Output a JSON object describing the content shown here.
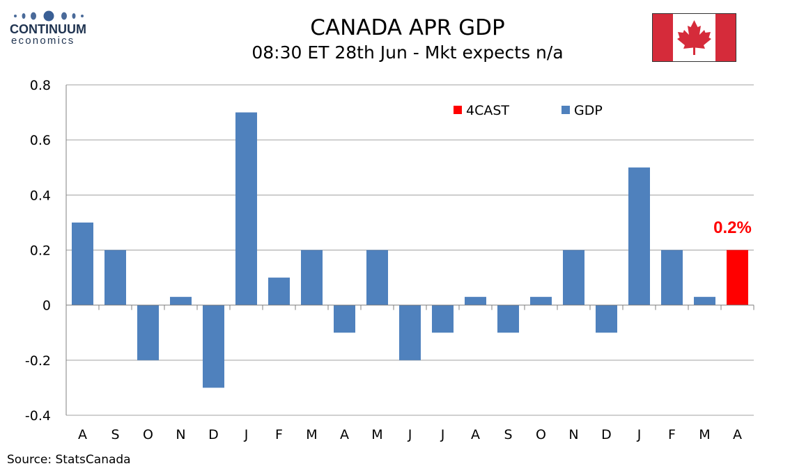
{
  "brand": {
    "name": "CONTINUUM",
    "sub": "economics"
  },
  "header": {
    "title": "CANADA APR GDP",
    "subtitle": "08:30 ET 28th Jun - Mkt expects n/a"
  },
  "flag": {
    "country": "Canada",
    "icon": "maple-leaf-flag-icon",
    "red": "#d52b3a",
    "white": "#ffffff"
  },
  "footer": {
    "source": "Source: StatsCanada"
  },
  "chart_data": {
    "type": "bar",
    "categories": [
      "A",
      "S",
      "O",
      "N",
      "D",
      "J",
      "F",
      "M",
      "A",
      "M",
      "J",
      "J",
      "A",
      "S",
      "O",
      "N",
      "D",
      "J",
      "F",
      "M",
      "A"
    ],
    "series": [
      {
        "name": "GDP",
        "color": "#4f81bd",
        "values": [
          0.3,
          0.2,
          -0.2,
          0.03,
          -0.3,
          0.7,
          0.1,
          0.2,
          -0.1,
          0.2,
          -0.2,
          -0.1,
          0.03,
          -0.1,
          0.03,
          0.2,
          -0.1,
          0.5,
          0.2,
          0.03,
          null
        ]
      },
      {
        "name": "4CAST",
        "color": "#ff0000",
        "values": [
          null,
          null,
          null,
          null,
          null,
          null,
          null,
          null,
          null,
          null,
          null,
          null,
          null,
          null,
          null,
          null,
          null,
          null,
          null,
          null,
          0.2
        ]
      }
    ],
    "legend": [
      "4CAST",
      "GDP"
    ],
    "legend_position": "top-right",
    "annotation": {
      "text": "0.2%",
      "category_index": 20,
      "color": "#ff0000"
    },
    "ylim": [
      -0.4,
      0.8
    ],
    "yticks": [
      -0.4,
      -0.2,
      0,
      0.2,
      0.4,
      0.6,
      0.8
    ],
    "ytick_labels": [
      "-0.4",
      "-0.2",
      "0",
      "0.2",
      "0.4",
      "0.6",
      "0.8"
    ],
    "grid": true,
    "xlabel": "",
    "ylabel": ""
  }
}
